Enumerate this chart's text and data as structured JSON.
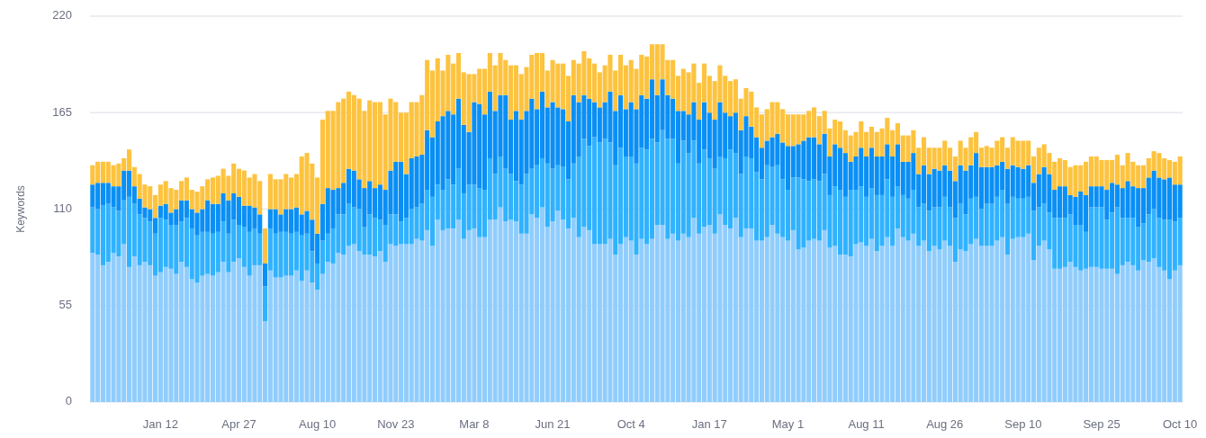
{
  "chart_data": {
    "type": "bar",
    "stacked": true,
    "ylabel": "Keywords",
    "ylim": [
      0,
      220
    ],
    "yticks": [
      0,
      55,
      110,
      165,
      220
    ],
    "grid": "y",
    "categories": [
      null,
      null,
      null,
      null,
      null,
      null,
      null,
      null,
      null,
      null,
      null,
      null,
      null,
      "Jan 12",
      null,
      null,
      null,
      null,
      null,
      null,
      null,
      null,
      null,
      null,
      null,
      null,
      null,
      null,
      "Apr 27",
      null,
      null,
      null,
      null,
      null,
      null,
      null,
      null,
      null,
      null,
      null,
      null,
      null,
      null,
      "Aug 10",
      null,
      null,
      null,
      null,
      null,
      null,
      null,
      null,
      null,
      null,
      null,
      null,
      null,
      null,
      "Nov 23",
      null,
      null,
      null,
      null,
      null,
      null,
      null,
      null,
      null,
      null,
      null,
      null,
      null,
      null,
      "Mar 8",
      null,
      null,
      null,
      null,
      null,
      null,
      null,
      null,
      null,
      null,
      null,
      null,
      null,
      null,
      "Jun 21",
      null,
      null,
      null,
      null,
      null,
      null,
      null,
      null,
      null,
      null,
      null,
      null,
      null,
      null,
      "Oct 4",
      null,
      null,
      null,
      null,
      null,
      null,
      null,
      null,
      null,
      null,
      null,
      null,
      null,
      null,
      "Jan 17",
      null,
      null,
      null,
      null,
      null,
      null,
      null,
      null,
      null,
      null,
      null,
      null,
      null,
      null,
      "May 1",
      null,
      null,
      null,
      null,
      null,
      null,
      null,
      null,
      null,
      null,
      null,
      null,
      null,
      null,
      "Aug 11",
      null,
      null,
      null,
      null,
      null,
      null,
      null,
      null,
      null,
      null,
      null,
      null,
      null,
      null,
      "Aug 26",
      null,
      null,
      null,
      null,
      null,
      null,
      null,
      null,
      null,
      null,
      null,
      null,
      null,
      null,
      "Sep 10",
      null,
      null,
      null,
      null,
      null,
      null,
      null,
      null,
      null,
      null,
      null,
      null,
      null,
      null,
      "Sep 25",
      null,
      null,
      null,
      null,
      null,
      null,
      null,
      null,
      null,
      null,
      null,
      null,
      null,
      null,
      "Oct 10"
    ],
    "series": [
      {
        "color": "#90cdfd",
        "values": [
          85,
          84,
          78,
          80,
          85,
          83,
          90,
          77,
          83,
          78,
          80,
          78,
          72,
          74,
          77,
          76,
          73,
          80,
          77,
          70,
          68,
          72,
          73,
          72,
          74,
          80,
          74,
          80,
          82,
          77,
          72,
          78,
          78,
          46,
          75,
          71,
          71,
          72,
          72,
          75,
          69,
          75,
          68,
          64,
          73,
          80,
          79,
          85,
          84,
          89,
          90,
          86,
          84,
          84,
          83,
          86,
          80,
          90,
          89,
          90,
          90,
          90,
          93,
          92,
          98,
          89,
          104,
          98,
          99,
          99,
          104,
          93,
          98,
          99,
          94,
          94,
          104,
          104,
          111,
          103,
          104,
          103,
          96,
          96,
          107,
          105,
          111,
          100,
          103,
          109,
          104,
          99,
          105,
          94,
          100,
          98,
          90,
          90,
          90,
          93,
          84,
          90,
          94,
          92,
          84,
          93,
          90,
          93,
          101,
          101,
          93,
          96,
          92,
          96,
          94,
          105,
          96,
          100,
          101,
          96,
          107,
          101,
          99,
          105,
          94,
          99,
          99,
          92,
          92,
          94,
          101,
          96,
          94,
          92,
          98,
          87,
          88,
          92,
          93,
          92,
          98,
          88,
          89,
          84,
          84,
          83,
          90,
          91,
          89,
          93,
          86,
          89,
          94,
          89,
          99,
          94,
          92,
          96,
          89,
          92,
          86,
          89,
          87,
          92,
          89,
          80,
          87,
          86,
          90,
          93,
          89,
          89,
          89,
          92,
          94,
          84,
          93,
          94,
          94,
          96,
          81,
          89,
          92,
          87,
          76,
          76,
          77,
          80,
          77,
          75,
          76,
          77,
          77,
          76,
          76,
          76,
          73,
          78,
          80,
          78,
          75,
          81,
          80,
          82,
          77,
          75,
          70,
          75,
          78
        ]
      },
      {
        "color": "#30b2ff",
        "values": [
          26,
          26,
          34,
          33,
          26,
          26,
          25,
          40,
          30,
          29,
          25,
          25,
          24,
          31,
          27,
          25,
          28,
          23,
          28,
          29,
          27,
          25,
          24,
          24,
          23,
          23,
          22,
          24,
          19,
          23,
          25,
          21,
          18,
          20,
          24,
          25,
          26,
          25,
          24,
          22,
          26,
          21,
          18,
          15,
          19,
          16,
          20,
          22,
          23,
          24,
          21,
          24,
          16,
          23,
          22,
          18,
          21,
          17,
          18,
          13,
          15,
          20,
          18,
          21,
          23,
          28,
          20,
          23,
          28,
          25,
          29,
          26,
          26,
          25,
          28,
          27,
          35,
          26,
          29,
          30,
          26,
          23,
          28,
          34,
          26,
          30,
          28,
          36,
          30,
          26,
          30,
          28,
          31,
          46,
          50,
          48,
          61,
          58,
          60,
          55,
          51,
          55,
          46,
          48,
          52,
          52,
          54,
          57,
          47,
          54,
          57,
          54,
          44,
          53,
          48,
          44,
          40,
          44,
          38,
          37,
          33,
          38,
          45,
          37,
          36,
          41,
          40,
          39,
          35,
          41,
          33,
          39,
          33,
          29,
          30,
          41,
          39,
          34,
          34,
          34,
          32,
          30,
          34,
          37,
          33,
          38,
          31,
          32,
          28,
          29,
          32,
          29,
          33,
          28,
          24,
          24,
          24,
          25,
          22,
          21,
          23,
          22,
          24,
          25,
          22,
          25,
          26,
          21,
          26,
          24,
          21,
          24,
          24,
          25,
          27,
          29,
          24,
          22,
          22,
          21,
          28,
          22,
          21,
          21,
          29,
          29,
          28,
          27,
          24,
          26,
          21,
          34,
          34,
          35,
          28,
          32,
          38,
          27,
          25,
          27,
          25,
          21,
          27,
          28,
          28,
          29,
          34,
          28,
          27
        ]
      },
      {
        "color": "#0a8ff5",
        "values": [
          13,
          15,
          13,
          12,
          12,
          14,
          17,
          15,
          10,
          9,
          6,
          7,
          9,
          7,
          9,
          7,
          9,
          12,
          10,
          11,
          13,
          13,
          18,
          17,
          16,
          16,
          19,
          15,
          16,
          12,
          15,
          12,
          11,
          13,
          11,
          14,
          10,
          13,
          14,
          14,
          12,
          13,
          18,
          17,
          21,
          26,
          22,
          15,
          18,
          20,
          21,
          17,
          22,
          19,
          17,
          20,
          20,
          25,
          30,
          34,
          25,
          29,
          29,
          28,
          34,
          34,
          36,
          42,
          39,
          40,
          40,
          39,
          30,
          47,
          48,
          43,
          38,
          36,
          35,
          42,
          31,
          40,
          37,
          36,
          40,
          32,
          38,
          32,
          38,
          33,
          33,
          33,
          39,
          31,
          25,
          27,
          20,
          20,
          21,
          29,
          31,
          30,
          27,
          31,
          31,
          30,
          29,
          34,
          27,
          29,
          25,
          23,
          30,
          17,
          22,
          22,
          25,
          27,
          26,
          28,
          31,
          26,
          19,
          23,
          25,
          23,
          18,
          20,
          18,
          14,
          17,
          18,
          21,
          25,
          18,
          19,
          22,
          25,
          24,
          21,
          23,
          22,
          24,
          24,
          25,
          16,
          19,
          22,
          23,
          23,
          22,
          22,
          20,
          23,
          24,
          19,
          21,
          21,
          19,
          22,
          21,
          22,
          21,
          18,
          21,
          21,
          22,
          25,
          19,
          25,
          24,
          21,
          21,
          18,
          16,
          20,
          18,
          18,
          17,
          18,
          16,
          19,
          21,
          22,
          16,
          18,
          18,
          11,
          16,
          19,
          21,
          12,
          12,
          12,
          17,
          17,
          13,
          17,
          21,
          18,
          22,
          20,
          21,
          22,
          23,
          23,
          24,
          21,
          19
        ]
      },
      {
        "color": "#fdc33f",
        "values": [
          11,
          12,
          12,
          12,
          12,
          13,
          7,
          12,
          11,
          14,
          13,
          13,
          13,
          12,
          13,
          14,
          11,
          11,
          13,
          11,
          12,
          13,
          12,
          15,
          16,
          14,
          14,
          17,
          16,
          20,
          16,
          19,
          19,
          20,
          20,
          17,
          20,
          20,
          18,
          19,
          33,
          33,
          32,
          32,
          48,
          44,
          45,
          49,
          48,
          44,
          43,
          46,
          44,
          46,
          49,
          47,
          43,
          41,
          34,
          28,
          35,
          32,
          31,
          34,
          40,
          38,
          36,
          26,
          32,
          29,
          26,
          30,
          33,
          16,
          20,
          26,
          22,
          26,
          24,
          20,
          31,
          26,
          26,
          25,
          25,
          32,
          22,
          21,
          24,
          25,
          26,
          26,
          20,
          22,
          25,
          23,
          22,
          20,
          21,
          21,
          23,
          23,
          25,
          24,
          23,
          23,
          24,
          20,
          29,
          20,
          20,
          22,
          20,
          24,
          24,
          22,
          21,
          22,
          21,
          22,
          21,
          21,
          20,
          19,
          18,
          16,
          20,
          17,
          19,
          18,
          20,
          18,
          19,
          18,
          18,
          17,
          15,
          15,
          17,
          16,
          13,
          16,
          14,
          15,
          13,
          15,
          14,
          15,
          14,
          12,
          14,
          16,
          15,
          15,
          12,
          15,
          15,
          13,
          15,
          16,
          15,
          12,
          13,
          14,
          13,
          14,
          14,
          13,
          16,
          12,
          11,
          12,
          11,
          14,
          14,
          12,
          16,
          15,
          16,
          14,
          15,
          15,
          13,
          12,
          16,
          16,
          15,
          16,
          18,
          15,
          19,
          17,
          17,
          15,
          17,
          13,
          17,
          13,
          16,
          14,
          13,
          13,
          11,
          11,
          14,
          12,
          10,
          13,
          16
        ]
      }
    ]
  }
}
